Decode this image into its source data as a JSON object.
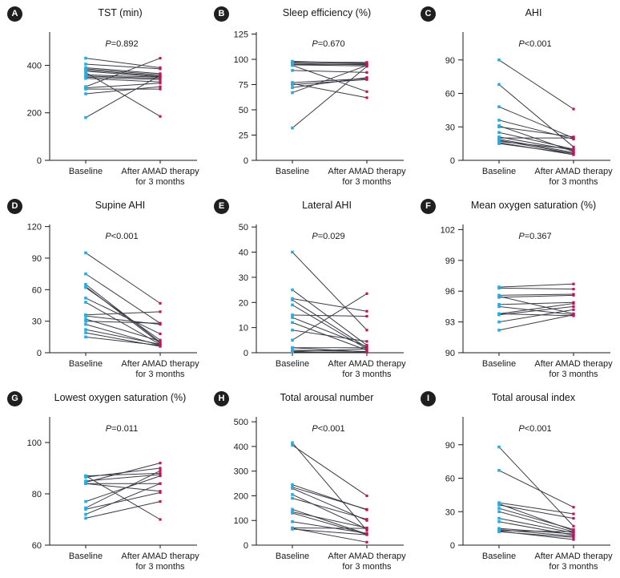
{
  "figure": {
    "name": "Paired pre/post polysomnography plots",
    "x_labels": {
      "baseline": "Baseline",
      "after_line1": "After AMAD therapy",
      "after_line2": "for 3 months"
    },
    "colors": {
      "baseline_marker": "#29abe2",
      "after_marker": "#c2155b",
      "pair_line": "#3a3a44",
      "axis": "#1a1a1a",
      "badge_bg": "#1f1f1f",
      "badge_fg": "#ffffff"
    }
  },
  "chart_data": [
    {
      "type": "paired-line",
      "letter": "A",
      "title": "TST (min)",
      "p_label": "P=0.892",
      "ylim": [
        0,
        540
      ],
      "yticks": [
        0,
        200,
        400
      ],
      "categories": [
        "Baseline",
        "After AMAD therapy for 3 months"
      ],
      "pairs": [
        [
          430,
          390
        ],
        [
          405,
          385
        ],
        [
          390,
          365
        ],
        [
          385,
          360
        ],
        [
          380,
          355
        ],
        [
          375,
          352
        ],
        [
          370,
          185
        ],
        [
          360,
          350
        ],
        [
          355,
          345
        ],
        [
          350,
          340
        ],
        [
          345,
          330
        ],
        [
          310,
          430
        ],
        [
          305,
          325
        ],
        [
          300,
          300
        ],
        [
          280,
          310
        ],
        [
          180,
          358
        ]
      ]
    },
    {
      "type": "paired-line",
      "letter": "B",
      "title": "Sleep efficiency (%)",
      "p_label": "P=0.670",
      "ylim": [
        0,
        127
      ],
      "yticks": [
        0,
        25,
        50,
        75,
        100,
        125
      ],
      "categories": [
        "Baseline",
        "After AMAD therapy for 3 months"
      ],
      "pairs": [
        [
          98,
          96
        ],
        [
          97.5,
          95.5
        ],
        [
          97,
          97
        ],
        [
          96,
          94.5
        ],
        [
          95,
          95
        ],
        [
          94.5,
          93.5
        ],
        [
          94,
          68
        ],
        [
          89,
          87
        ],
        [
          77,
          81
        ],
        [
          76,
          62
        ],
        [
          75,
          80
        ],
        [
          72,
          82
        ],
        [
          67,
          94
        ],
        [
          32,
          93
        ]
      ]
    },
    {
      "type": "paired-line",
      "letter": "C",
      "title": "AHI",
      "p_label": "P<0.001",
      "ylim": [
        0,
        115
      ],
      "yticks": [
        0,
        30,
        60,
        90
      ],
      "categories": [
        "Baseline",
        "After AMAD therapy for 3 months"
      ],
      "pairs": [
        [
          90,
          46
        ],
        [
          68,
          12
        ],
        [
          48,
          20
        ],
        [
          36,
          19
        ],
        [
          31,
          8
        ],
        [
          30,
          21
        ],
        [
          25,
          10
        ],
        [
          21,
          9
        ],
        [
          20,
          20
        ],
        [
          19,
          7
        ],
        [
          18,
          6
        ],
        [
          17,
          10
        ],
        [
          16,
          5
        ],
        [
          15,
          6
        ]
      ]
    },
    {
      "type": "paired-line",
      "letter": "D",
      "title": "Supine AHI",
      "p_label": "P<0.001",
      "ylim": [
        0,
        122
      ],
      "yticks": [
        0,
        30,
        60,
        90,
        120
      ],
      "categories": [
        "Baseline",
        "After AMAD therapy for 3 months"
      ],
      "pairs": [
        [
          95,
          47
        ],
        [
          75,
          28
        ],
        [
          65,
          10
        ],
        [
          63,
          9
        ],
        [
          62,
          12
        ],
        [
          52,
          18
        ],
        [
          48,
          8
        ],
        [
          36,
          39
        ],
        [
          35,
          27
        ],
        [
          32,
          11
        ],
        [
          30,
          28
        ],
        [
          27,
          7
        ],
        [
          22,
          8
        ],
        [
          19,
          6
        ],
        [
          15,
          7
        ]
      ]
    },
    {
      "type": "paired-line",
      "letter": "E",
      "title": "Lateral AHI",
      "p_label": "P=0.029",
      "ylim": [
        0,
        51
      ],
      "yticks": [
        0,
        10,
        20,
        30,
        40,
        50
      ],
      "categories": [
        "Baseline",
        "After AMAD therapy for 3 months"
      ],
      "pairs": [
        [
          40,
          9
        ],
        [
          25,
          3
        ],
        [
          21.5,
          16.5
        ],
        [
          21,
          2
        ],
        [
          19,
          1.5
        ],
        [
          15,
          14.5
        ],
        [
          14,
          2.5
        ],
        [
          12,
          1
        ],
        [
          9,
          4.5
        ],
        [
          5,
          23.5
        ],
        [
          2,
          2
        ],
        [
          2,
          0.3
        ],
        [
          1,
          0.5
        ],
        [
          0.5,
          1.5
        ],
        [
          0.3,
          0.2
        ]
      ]
    },
    {
      "type": "paired-line",
      "letter": "F",
      "title": "Mean oxygen saturation (%)",
      "p_label": "P=0.367",
      "ylim": [
        90,
        102.5
      ],
      "yticks": [
        90,
        93,
        96,
        99,
        102
      ],
      "categories": [
        "Baseline",
        "After AMAD therapy for 3 months"
      ],
      "pairs": [
        [
          96.4,
          96.7
        ],
        [
          96.3,
          96.2
        ],
        [
          95.6,
          95.7
        ],
        [
          95.5,
          93.8
        ],
        [
          95.4,
          95.6
        ],
        [
          94.7,
          94.9
        ],
        [
          94.5,
          93.7
        ],
        [
          93.8,
          94.8
        ],
        [
          93.7,
          94.5
        ],
        [
          93.8,
          93.6
        ],
        [
          93,
          94.2
        ],
        [
          92.2,
          93.7
        ]
      ]
    },
    {
      "type": "paired-line",
      "letter": "G",
      "title": "Lowest oxygen saturation (%)",
      "p_label": "P=0.011",
      "ylim": [
        60,
        110
      ],
      "yticks": [
        60,
        80,
        100
      ],
      "categories": [
        "Baseline",
        "After AMAD therapy for 3 months"
      ],
      "pairs": [
        [
          87,
          70
        ],
        [
          87,
          88
        ],
        [
          86.5,
          90
        ],
        [
          85,
          87.5
        ],
        [
          84.5,
          92
        ],
        [
          84,
          84
        ],
        [
          84,
          81
        ],
        [
          77,
          87
        ],
        [
          74.5,
          89
        ],
        [
          74,
          80.5
        ],
        [
          72,
          84
        ],
        [
          70.5,
          77
        ]
      ]
    },
    {
      "type": "paired-line",
      "letter": "H",
      "title": "Total arousal number",
      "p_label": "P<0.001",
      "ylim": [
        0,
        520
      ],
      "yticks": [
        0,
        100,
        200,
        300,
        400,
        500
      ],
      "categories": [
        "Baseline",
        "After AMAD therapy for 3 months"
      ],
      "pairs": [
        [
          415,
          60
        ],
        [
          405,
          200
        ],
        [
          245,
          143
        ],
        [
          235,
          145
        ],
        [
          230,
          100
        ],
        [
          205,
          65
        ],
        [
          190,
          105
        ],
        [
          145,
          45
        ],
        [
          135,
          70
        ],
        [
          130,
          43
        ],
        [
          95,
          48
        ],
        [
          70,
          68
        ],
        [
          68,
          12
        ],
        [
          65,
          42
        ]
      ]
    },
    {
      "type": "paired-line",
      "letter": "I",
      "title": "Total arousal index",
      "p_label": "P<0.001",
      "ylim": [
        0,
        115
      ],
      "yticks": [
        0,
        30,
        60,
        90
      ],
      "categories": [
        "Baseline",
        "After AMAD therapy for 3 months"
      ],
      "pairs": [
        [
          88,
          17
        ],
        [
          67,
          34
        ],
        [
          38,
          28
        ],
        [
          37,
          13
        ],
        [
          36,
          24
        ],
        [
          33,
          14
        ],
        [
          30,
          12
        ],
        [
          24,
          11
        ],
        [
          21,
          9
        ],
        [
          15,
          10
        ],
        [
          14,
          8
        ],
        [
          13,
          12
        ],
        [
          12.5,
          5
        ],
        [
          12,
          7
        ]
      ]
    }
  ]
}
